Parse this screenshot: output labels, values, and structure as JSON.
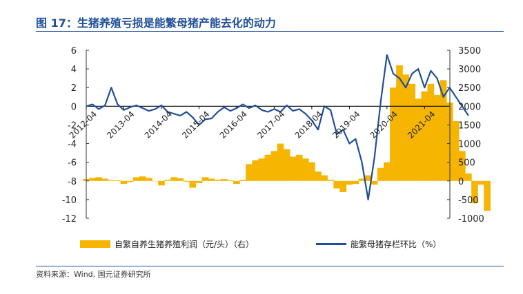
{
  "title": "图 17：生猪养殖亏损是能繁母猪产能去化的动力",
  "source": "资料来源：Wind, 国元证券研究所",
  "colors": {
    "bar": "#f6b500",
    "line": "#1f4e9a",
    "title": "#1f4e9a"
  },
  "chart_data": {
    "type": "bar+line",
    "x_ticks": [
      "2012-04",
      "2013-04",
      "2014-04",
      "2015-04",
      "2016-04",
      "2017-04",
      "2018-04",
      "2019-04",
      "2020-04",
      "2021-04"
    ],
    "x_start": "2012-04",
    "y_left": {
      "min": -12,
      "max": 6,
      "ticks": [
        "6",
        "4",
        "2",
        "0",
        "-2",
        "-4",
        "-6",
        "-8",
        "-10",
        "-12"
      ]
    },
    "y_right": {
      "min": -1000,
      "max": 3500,
      "ticks": [
        "3500",
        "3000",
        "2500",
        "2000",
        "1500",
        "1000",
        "500",
        "0",
        "-500",
        "-1000"
      ]
    },
    "series": [
      {
        "name": "自繁自养生猪养殖利润（元/头）（右）",
        "axis": "right",
        "kind": "bar",
        "points": [
          [
            "2012-04",
            50
          ],
          [
            "2012-06",
            80
          ],
          [
            "2012-08",
            100
          ],
          [
            "2012-10",
            60
          ],
          [
            "2012-12",
            20
          ],
          [
            "2013-02",
            20
          ],
          [
            "2013-04",
            -80
          ],
          [
            "2013-06",
            -30
          ],
          [
            "2013-08",
            100
          ],
          [
            "2013-10",
            120
          ],
          [
            "2013-12",
            80
          ],
          [
            "2014-02",
            -10
          ],
          [
            "2014-04",
            -120
          ],
          [
            "2014-06",
            30
          ],
          [
            "2014-08",
            100
          ],
          [
            "2014-10",
            70
          ],
          [
            "2014-12",
            -20
          ],
          [
            "2015-02",
            -180
          ],
          [
            "2015-04",
            -60
          ],
          [
            "2015-06",
            100
          ],
          [
            "2015-08",
            60
          ],
          [
            "2015-10",
            30
          ],
          [
            "2015-12",
            50
          ],
          [
            "2016-02",
            20
          ],
          [
            "2016-04",
            -80
          ],
          [
            "2016-06",
            30
          ],
          [
            "2016-08",
            450
          ],
          [
            "2016-10",
            550
          ],
          [
            "2016-12",
            600
          ],
          [
            "2017-02",
            700
          ],
          [
            "2017-04",
            800
          ],
          [
            "2017-06",
            1000
          ],
          [
            "2017-08",
            850
          ],
          [
            "2017-10",
            650
          ],
          [
            "2017-12",
            700
          ],
          [
            "2018-02",
            600
          ],
          [
            "2018-04",
            500
          ],
          [
            "2018-06",
            250
          ],
          [
            "2018-08",
            150
          ],
          [
            "2018-10",
            30
          ],
          [
            "2018-12",
            -200
          ],
          [
            "2019-02",
            -300
          ],
          [
            "2019-04",
            -100
          ],
          [
            "2019-06",
            -80
          ],
          [
            "2019-08",
            60
          ],
          [
            "2019-10",
            150
          ],
          [
            "2019-12",
            -100
          ],
          [
            "2020-02",
            350
          ],
          [
            "2020-04",
            500
          ],
          [
            "2020-06",
            2500
          ],
          [
            "2020-08",
            3100
          ],
          [
            "2020-10",
            2850
          ],
          [
            "2020-12",
            2600
          ],
          [
            "2021-02",
            2200
          ],
          [
            "2021-04",
            2400
          ],
          [
            "2021-06",
            2600
          ],
          [
            "2021-08",
            2300
          ],
          [
            "2021-10",
            2700
          ],
          [
            "2021-12",
            2100
          ],
          [
            "2022-02",
            1600
          ],
          [
            "2022-04",
            800
          ],
          [
            "2022-06",
            200
          ],
          [
            "2022-08",
            -600
          ],
          [
            "2022-10",
            -100
          ],
          [
            "2022-12",
            -800
          ]
        ]
      },
      {
        "name": "能繁母猪存栏环比（%）",
        "axis": "left",
        "kind": "line",
        "points": [
          [
            "2012-04",
            0.0
          ],
          [
            "2012-06",
            0.2
          ],
          [
            "2012-08",
            -0.3
          ],
          [
            "2012-10",
            0.1
          ],
          [
            "2012-12",
            2.0
          ],
          [
            "2013-02",
            0.2
          ],
          [
            "2013-04",
            -0.4
          ],
          [
            "2013-06",
            -0.1
          ],
          [
            "2013-08",
            0.1
          ],
          [
            "2013-10",
            -0.2
          ],
          [
            "2013-12",
            -0.5
          ],
          [
            "2014-02",
            -0.3
          ],
          [
            "2014-04",
            0.1
          ],
          [
            "2014-06",
            -0.6
          ],
          [
            "2014-08",
            -0.8
          ],
          [
            "2014-10",
            -1.0
          ],
          [
            "2014-12",
            -0.6
          ],
          [
            "2015-02",
            -1.2
          ],
          [
            "2015-04",
            -2.0
          ],
          [
            "2015-06",
            -1.4
          ],
          [
            "2015-08",
            -1.3
          ],
          [
            "2015-10",
            -0.6
          ],
          [
            "2015-12",
            -0.1
          ],
          [
            "2016-02",
            -0.5
          ],
          [
            "2016-04",
            -0.2
          ],
          [
            "2016-06",
            0.2
          ],
          [
            "2016-08",
            -0.2
          ],
          [
            "2016-10",
            0.1
          ],
          [
            "2016-12",
            -0.4
          ],
          [
            "2017-02",
            -0.6
          ],
          [
            "2017-04",
            -0.3
          ],
          [
            "2017-06",
            -0.6
          ],
          [
            "2017-08",
            0.1
          ],
          [
            "2017-10",
            -0.5
          ],
          [
            "2017-12",
            -0.3
          ],
          [
            "2018-02",
            -0.8
          ],
          [
            "2018-04",
            -1.5
          ],
          [
            "2018-06",
            -2.5
          ],
          [
            "2018-08",
            0.0
          ],
          [
            "2018-10",
            -0.4
          ],
          [
            "2018-12",
            -3.0
          ],
          [
            "2019-02",
            -2.5
          ],
          [
            "2019-04",
            -4.0
          ],
          [
            "2019-06",
            -3.5
          ],
          [
            "2019-08",
            -6.0
          ],
          [
            "2019-10",
            -10.0
          ],
          [
            "2019-12",
            -5.5
          ],
          [
            "2020-02",
            0.5
          ],
          [
            "2020-04",
            5.5
          ],
          [
            "2020-06",
            3.5
          ],
          [
            "2020-08",
            3.0
          ],
          [
            "2020-10",
            2.0
          ],
          [
            "2020-12",
            3.5
          ],
          [
            "2021-02",
            4.0
          ],
          [
            "2021-04",
            2.0
          ],
          [
            "2021-06",
            3.8
          ],
          [
            "2021-08",
            3.0
          ],
          [
            "2021-10",
            1.0
          ],
          [
            "2021-12",
            2.0
          ],
          [
            "2022-02",
            1.0
          ],
          [
            "2022-04",
            0.0
          ],
          [
            "2022-06",
            -1.0
          ]
        ]
      }
    ],
    "legend": [
      "自繁自养生猪养殖利润（元/头）（右）",
      "能繁母猪存栏环比（%）"
    ],
    "legend_position": "bottom",
    "grid": false
  }
}
